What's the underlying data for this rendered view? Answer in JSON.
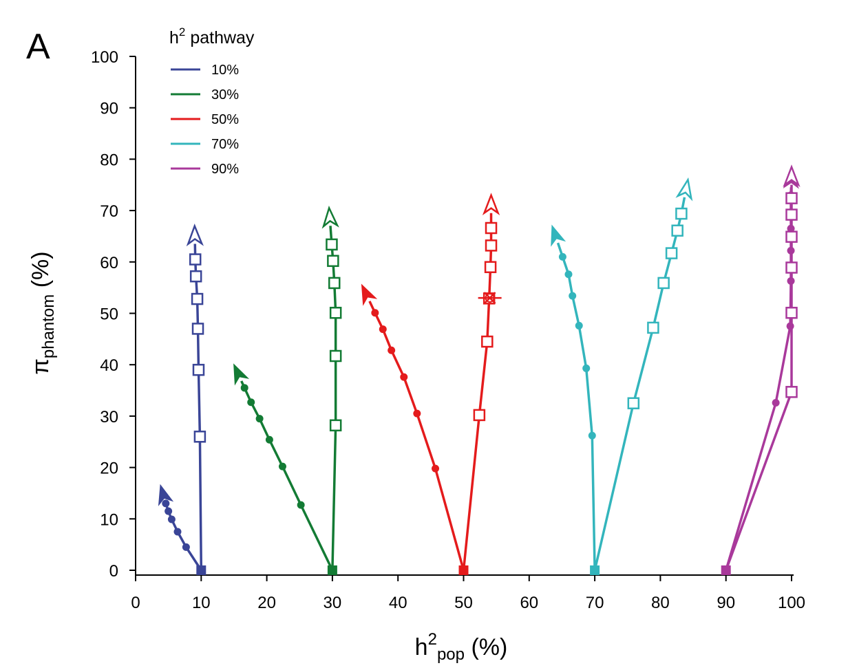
{
  "chart_data": {
    "type": "line",
    "panel_label": "A",
    "xlabel": {
      "main": "h",
      "sup": "2",
      "sub": "pop",
      "unit": " (%)"
    },
    "ylabel": {
      "main": "π",
      "sub": "phantom",
      "unit": " (%)"
    },
    "xlim": [
      0,
      100
    ],
    "ylim": [
      0,
      100
    ],
    "xticks": [
      "0",
      "10",
      "20",
      "30",
      "40",
      "50",
      "60",
      "70",
      "80",
      "90",
      "100"
    ],
    "yticks": [
      "0",
      "10",
      "20",
      "30",
      "40",
      "50",
      "60",
      "70",
      "80",
      "90",
      "100"
    ],
    "legend": {
      "title_main": "h",
      "title_sup": "2",
      "title_rest": " pathway",
      "position": "top-left",
      "entries": [
        {
          "label": "10%",
          "color": "#3a4597"
        },
        {
          "label": "30%",
          "color": "#137b34"
        },
        {
          "label": "50%",
          "color": "#e41b1c"
        },
        {
          "label": "70%",
          "color": "#33b5bc"
        },
        {
          "label": "90%",
          "color": "#a9399b"
        }
      ]
    },
    "series": [
      {
        "name": "10%",
        "color": "#3a4597",
        "branches": [
          {
            "marker": "dot",
            "points": [
              [
                10,
                0
              ],
              [
                7.7,
                4.5
              ],
              [
                6.4,
                7.5
              ],
              [
                5.5,
                9.9
              ],
              [
                5,
                11.5
              ],
              [
                4.6,
                13
              ],
              [
                3.8,
                16.5
              ]
            ]
          },
          {
            "marker": "open-square",
            "points": [
              [
                10,
                0
              ],
              [
                9.8,
                26
              ],
              [
                9.6,
                39
              ],
              [
                9.5,
                47
              ],
              [
                9.4,
                52.8
              ],
              [
                9.2,
                57.2
              ],
              [
                9.1,
                60.5
              ],
              [
                9,
                67
              ]
            ]
          }
        ]
      },
      {
        "name": "30%",
        "color": "#137b34",
        "branches": [
          {
            "marker": "dot",
            "points": [
              [
                30,
                0
              ],
              [
                25.2,
                12.7
              ],
              [
                22.4,
                20.2
              ],
              [
                20.4,
                25.4
              ],
              [
                18.9,
                29.5
              ],
              [
                17.6,
                32.7
              ],
              [
                16.6,
                35.5
              ],
              [
                15,
                40
              ]
            ]
          },
          {
            "marker": "open-square",
            "points": [
              [
                30,
                0
              ],
              [
                30.5,
                28.2
              ],
              [
                30.5,
                41.7
              ],
              [
                30.5,
                50.1
              ],
              [
                30.3,
                55.9
              ],
              [
                30.1,
                60.2
              ],
              [
                29.9,
                63.4
              ],
              [
                29.5,
                70.5
              ]
            ]
          }
        ]
      },
      {
        "name": "50%",
        "color": "#e41b1c",
        "branches": [
          {
            "marker": "dot",
            "points": [
              [
                50,
                0
              ],
              [
                45.7,
                19.8
              ],
              [
                42.9,
                30.5
              ],
              [
                40.9,
                37.6
              ],
              [
                39,
                42.8
              ],
              [
                37.7,
                46.9
              ],
              [
                36.5,
                50.1
              ],
              [
                34.5,
                55.5
              ]
            ]
          },
          {
            "marker": "open-square",
            "points": [
              [
                50,
                0
              ],
              [
                52.4,
                30.2
              ],
              [
                53.6,
                44.5
              ],
              [
                53.9,
                52.9
              ],
              [
                54.1,
                59
              ],
              [
                54.2,
                63.2
              ],
              [
                54.2,
                66.6
              ],
              [
                54.2,
                73
              ]
            ]
          }
        ]
      },
      {
        "name": "70%",
        "color": "#33b5bc",
        "branches": [
          {
            "marker": "dot",
            "points": [
              [
                70,
                0
              ],
              [
                69.6,
                26.2
              ],
              [
                68.7,
                39.3
              ],
              [
                67.6,
                47.6
              ],
              [
                66.6,
                53.4
              ],
              [
                66,
                57.6
              ],
              [
                65.1,
                61
              ],
              [
                63.5,
                67
              ]
            ]
          },
          {
            "marker": "open-square",
            "points": [
              [
                70,
                0
              ],
              [
                75.9,
                32.5
              ],
              [
                78.9,
                47.2
              ],
              [
                80.5,
                55.9
              ],
              [
                81.7,
                61.7
              ],
              [
                82.6,
                66.1
              ],
              [
                83.2,
                69.4
              ],
              [
                84.2,
                76
              ]
            ]
          }
        ]
      },
      {
        "name": "90%",
        "color": "#a9399b",
        "branches": [
          {
            "marker": "dot",
            "points": [
              [
                90,
                0
              ],
              [
                97.6,
                32.6
              ],
              [
                99.8,
                47.5
              ],
              [
                99.9,
                56.3
              ],
              [
                99.9,
                62.2
              ],
              [
                99.9,
                66.5
              ],
              [
                99.9,
                69.7
              ],
              [
                99.9,
                73
              ],
              [
                100,
                78
              ]
            ]
          },
          {
            "marker": "open-square",
            "points": [
              [
                90,
                0
              ],
              [
                100,
                34.7
              ],
              [
                100,
                50.1
              ],
              [
                100,
                58.9
              ],
              [
                100,
                64.9
              ],
              [
                100,
                69.2
              ],
              [
                100,
                72.4
              ],
              [
                100,
                78.5
              ]
            ]
          }
        ]
      }
    ],
    "annotations": [
      {
        "type": "star-marker",
        "series": "50%",
        "x": 54.0,
        "y": 53
      }
    ]
  }
}
